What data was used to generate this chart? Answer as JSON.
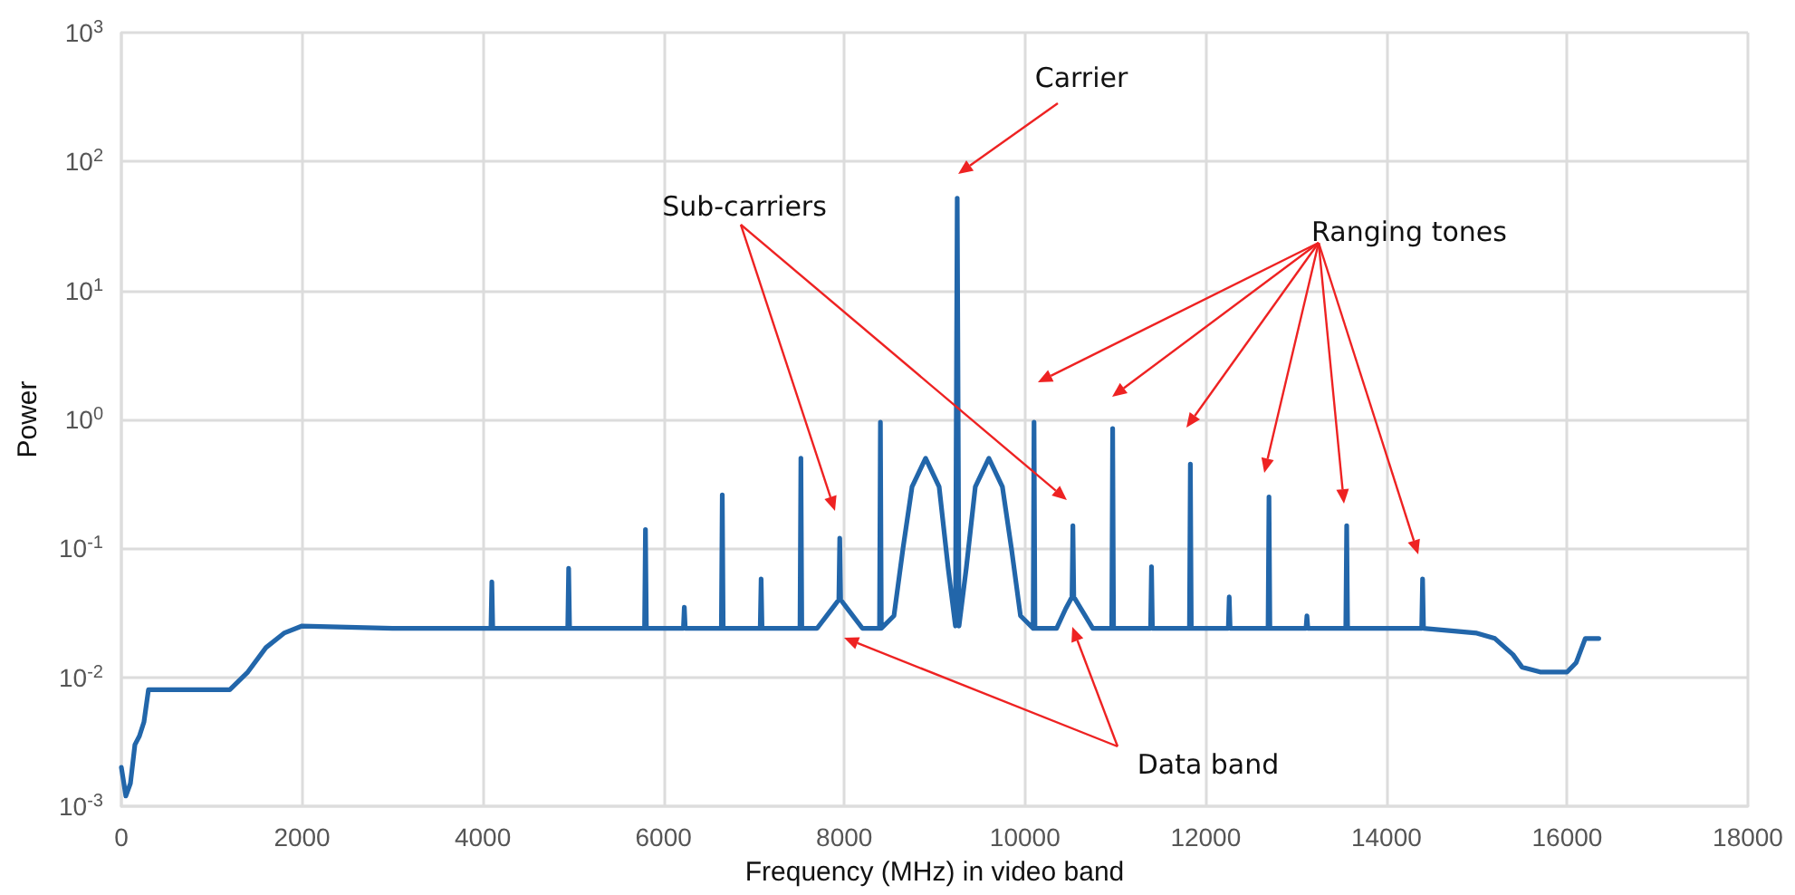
{
  "chart_data": {
    "type": "line",
    "xlabel": "Frequency (MHz) in video band",
    "ylabel": "Power",
    "log": "y",
    "grid": true,
    "marker": "none",
    "line_style": "solid",
    "xlim": [
      0,
      18000
    ],
    "xticks": [
      0,
      2000,
      4000,
      6000,
      8000,
      10000,
      12000,
      14000,
      16000,
      18000
    ],
    "ylim": [
      0.001,
      1000
    ],
    "yticks": [
      {
        "value": 0.001,
        "label": "10$^{-3}$"
      },
      {
        "value": 0.01,
        "label": "10$^{-2}$"
      },
      {
        "value": 0.1,
        "label": "10$^{-1}$"
      },
      {
        "value": 1,
        "label": "10$^{0}$"
      },
      {
        "value": 10,
        "label": "10$^{1}$"
      },
      {
        "value": 100,
        "label": "10$^{2}$"
      },
      {
        "value": 1000,
        "label": "10$^{3}$"
      }
    ],
    "annotations": [
      "Carrier",
      "Sub-carriers",
      "Ranging tones",
      "Data band"
    ],
    "series": [
      {
        "color": "#2266aa",
        "x": [
          0,
          50,
          100,
          150,
          200,
          250,
          300,
          600,
          900,
          1200,
          1400,
          1600,
          1800,
          2000,
          3000,
          4090,
          4100,
          4110,
          4940,
          4950,
          4960,
          5790,
          5800,
          5810,
          6220,
          6230,
          6240,
          6640,
          6650,
          6660,
          7070,
          7080,
          7090,
          7510,
          7520,
          7530,
          7700,
          7850,
          7940,
          7950,
          7960,
          8050,
          8200,
          8390,
          8400,
          8410,
          8550,
          8650,
          8750,
          8900,
          9050,
          9150,
          9230,
          9250,
          9270,
          9350,
          9450,
          9600,
          9750,
          9850,
          9950,
          10090,
          10100,
          10110,
          10350,
          10450,
          10520,
          10530,
          10540,
          10620,
          10750,
          10960,
          10970,
          10980,
          11390,
          11400,
          11410,
          11820,
          11830,
          11840,
          12250,
          12260,
          12270,
          12690,
          12700,
          12710,
          13110,
          13120,
          13130,
          13550,
          13560,
          13570,
          14390,
          14400,
          14410,
          15000,
          15200,
          15400,
          15500,
          15700,
          16000,
          16100,
          16200,
          16350
        ],
        "values": [
          0.002,
          0.0012,
          0.0015,
          0.003,
          0.0035,
          0.0045,
          0.008,
          0.008,
          0.008,
          0.008,
          0.011,
          0.017,
          0.022,
          0.025,
          0.024,
          0.024,
          0.055,
          0.024,
          0.024,
          0.07,
          0.024,
          0.024,
          0.14,
          0.024,
          0.024,
          0.035,
          0.024,
          0.024,
          0.26,
          0.024,
          0.024,
          0.058,
          0.024,
          0.024,
          0.5,
          0.024,
          0.024,
          0.033,
          0.04,
          0.12,
          0.04,
          0.033,
          0.024,
          0.024,
          0.95,
          0.024,
          0.03,
          0.1,
          0.3,
          0.5,
          0.3,
          0.07,
          0.025,
          52,
          0.025,
          0.07,
          0.3,
          0.5,
          0.3,
          0.1,
          0.03,
          0.024,
          0.95,
          0.024,
          0.024,
          0.034,
          0.042,
          0.15,
          0.042,
          0.034,
          0.024,
          0.024,
          0.85,
          0.024,
          0.024,
          0.072,
          0.024,
          0.024,
          0.45,
          0.024,
          0.024,
          0.042,
          0.024,
          0.024,
          0.25,
          0.024,
          0.024,
          0.03,
          0.024,
          0.024,
          0.15,
          0.024,
          0.024,
          0.058,
          0.024,
          0.022,
          0.02,
          0.015,
          0.012,
          0.011,
          0.011,
          0.013,
          0.02,
          0.02
        ]
      }
    ]
  }
}
